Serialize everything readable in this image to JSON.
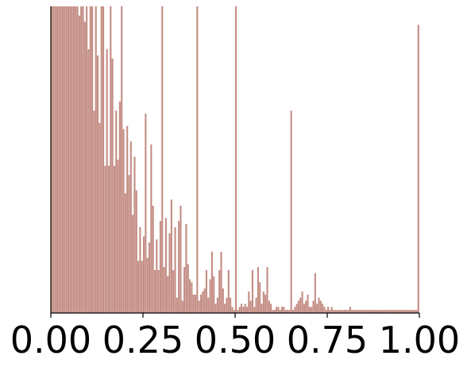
{
  "chart_data": {
    "type": "bar",
    "title": "",
    "xlabel": "",
    "ylabel": "",
    "xlim": [
      0,
      1
    ],
    "ylim": [
      0,
      100
    ],
    "bins": 200,
    "bar_color": "#c48e85",
    "axis_color": "#000000",
    "grid": false,
    "legend": "none",
    "xticks": [
      {
        "value": 0.0,
        "label": "0.00"
      },
      {
        "value": 0.25,
        "label": "0.25"
      },
      {
        "value": 0.5,
        "label": "0.50"
      },
      {
        "value": 0.75,
        "label": "0.75"
      },
      {
        "value": 1.0,
        "label": "1.00"
      }
    ],
    "values": [
      100,
      100,
      100,
      100,
      100,
      100,
      100,
      100,
      100,
      100,
      100,
      100,
      100,
      100,
      100,
      97,
      100,
      100,
      95,
      100,
      86,
      100,
      100,
      66,
      100,
      84,
      62,
      100,
      100,
      48,
      86,
      48,
      100,
      83,
      48,
      66,
      50,
      69,
      100,
      60,
      39,
      61,
      45,
      56,
      32,
      51,
      40,
      17,
      28,
      17,
      25,
      65,
      18,
      23,
      55,
      35,
      14,
      24,
      14,
      30,
      100,
      15,
      31,
      12,
      26,
      37,
      14,
      28,
      5,
      30,
      35,
      4,
      15,
      29,
      16,
      11,
      10,
      6,
      6,
      100,
      4,
      6,
      7,
      8,
      14,
      5,
      11,
      20,
      12,
      3,
      5,
      14,
      20,
      8,
      3,
      5,
      14,
      5,
      2,
      1,
      100,
      1,
      2,
      3,
      2,
      3,
      2,
      7,
      4,
      14,
      2,
      5,
      15,
      10,
      3,
      7,
      6,
      15,
      4,
      3,
      1,
      1,
      2,
      2,
      1,
      2,
      2,
      1,
      1,
      1,
      66,
      1,
      2,
      3,
      4,
      5,
      7,
      3,
      4,
      6,
      2,
      2,
      4,
      13,
      3,
      5,
      4,
      3,
      2,
      1,
      2,
      1,
      2,
      1,
      1,
      1,
      1,
      1,
      1,
      1,
      1,
      1,
      2,
      1,
      1,
      1,
      1,
      1,
      1,
      1,
      1,
      1,
      1,
      1,
      1,
      1,
      1,
      1,
      1,
      1,
      1,
      1,
      1,
      1,
      1,
      1,
      1,
      1,
      1,
      1,
      1,
      1,
      1,
      1,
      1,
      1,
      1,
      1,
      1,
      94
    ],
    "notes_spikes": []
  }
}
